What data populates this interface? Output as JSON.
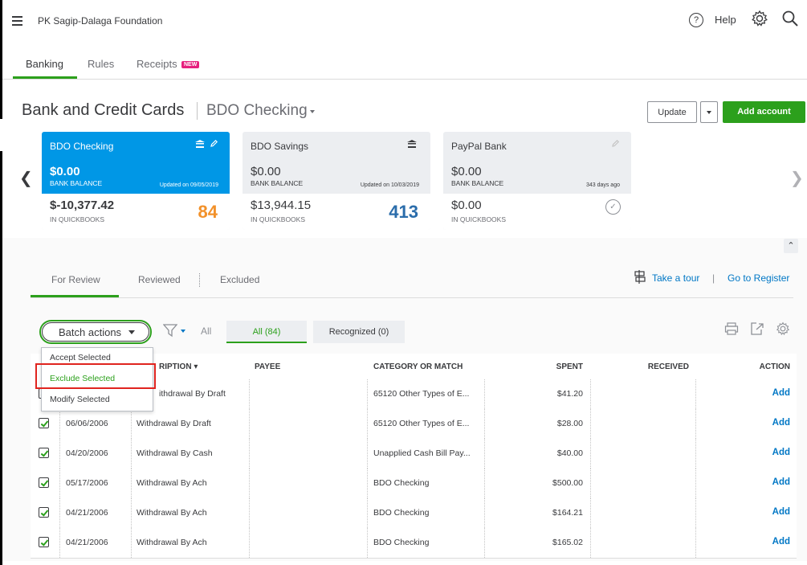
{
  "topbar": {
    "company_name": "PK Sagip-Dalaga Foundation",
    "help_label": "Help",
    "help_glyph": "?"
  },
  "tabs": [
    {
      "label": "Banking",
      "active": true
    },
    {
      "label": "Rules",
      "active": false
    },
    {
      "label": "Receipts",
      "active": false,
      "badge": "NEW"
    }
  ],
  "header": {
    "title": "Bank and Credit Cards",
    "account_selector": "BDO Checking",
    "update_label": "Update",
    "add_account_label": "Add account"
  },
  "cards": [
    {
      "name": "BDO Checking",
      "bank_balance": "$0.00",
      "bank_balance_label": "BANK BALANCE",
      "updated": "Updated on 09/05/2019",
      "qb_balance": "$-10,377.42",
      "qb_label": "IN QUICKBOOKS",
      "count": "84",
      "selected": true
    },
    {
      "name": "BDO Savings",
      "bank_balance": "$0.00",
      "bank_balance_label": "BANK BALANCE",
      "updated": "Updated on 10/03/2019",
      "qb_balance": "$13,944.15",
      "qb_label": "IN QUICKBOOKS",
      "count": "413",
      "selected": false
    },
    {
      "name": "PayPal Bank",
      "bank_balance": "$0.00",
      "bank_balance_label": "BANK BALANCE",
      "updated": "343 days ago",
      "qb_balance": "$0.00",
      "qb_label": "IN QUICKBOOKS",
      "selected": false
    }
  ],
  "review_tabs": {
    "for_review": "For Review",
    "reviewed": "Reviewed",
    "excluded": "Excluded",
    "take_tour": "Take a tour",
    "separator": "|",
    "go_to_register": "Go to Register"
  },
  "toolbar": {
    "batch_actions_label": "Batch actions",
    "filter_all_label": "All",
    "pill_all": "All (84)",
    "pill_recognized": "Recognized (0)"
  },
  "batch_menu": {
    "items": [
      "Accept Selected",
      "Exclude Selected",
      "Modify Selected"
    ],
    "highlighted": "Exclude Selected"
  },
  "table": {
    "columns": [
      "DESCRIPTION",
      "PAYEE",
      "CATEGORY OR MATCH",
      "SPENT",
      "RECEIVED",
      "ACTION"
    ],
    "description_header_visible": "RIPTION",
    "rows": [
      {
        "date": "",
        "description": "ithdrawal By Draft",
        "payee": "",
        "category": "65120 Other Types of E...",
        "spent": "$41.20",
        "received": "",
        "action": "Add"
      },
      {
        "date": "06/06/2006",
        "description": "Withdrawal By Draft",
        "payee": "",
        "category": "65120 Other Types of E...",
        "spent": "$28.00",
        "received": "",
        "action": "Add"
      },
      {
        "date": "04/20/2006",
        "description": "Withdrawal By Cash",
        "payee": "",
        "category": "Unapplied Cash Bill Pay...",
        "spent": "$40.00",
        "received": "",
        "action": "Add"
      },
      {
        "date": "05/17/2006",
        "description": "Withdrawal By Ach",
        "payee": "",
        "category": "BDO Checking",
        "spent": "$500.00",
        "received": "",
        "action": "Add"
      },
      {
        "date": "04/21/2006",
        "description": "Withdrawal By Ach",
        "payee": "",
        "category": "BDO Checking",
        "spent": "$164.21",
        "received": "",
        "action": "Add"
      },
      {
        "date": "04/21/2006",
        "description": "Withdrawal By Ach",
        "payee": "",
        "category": "BDO Checking",
        "spent": "$165.02",
        "received": "",
        "action": "Add"
      }
    ]
  },
  "colors": {
    "brand_green": "#2ca01c",
    "card_selected_blue": "#0097e6",
    "link_blue": "#0077c5",
    "count_orange": "#f2912a",
    "count_blue": "#2b6dab",
    "highlight_red": "#e0241f"
  }
}
